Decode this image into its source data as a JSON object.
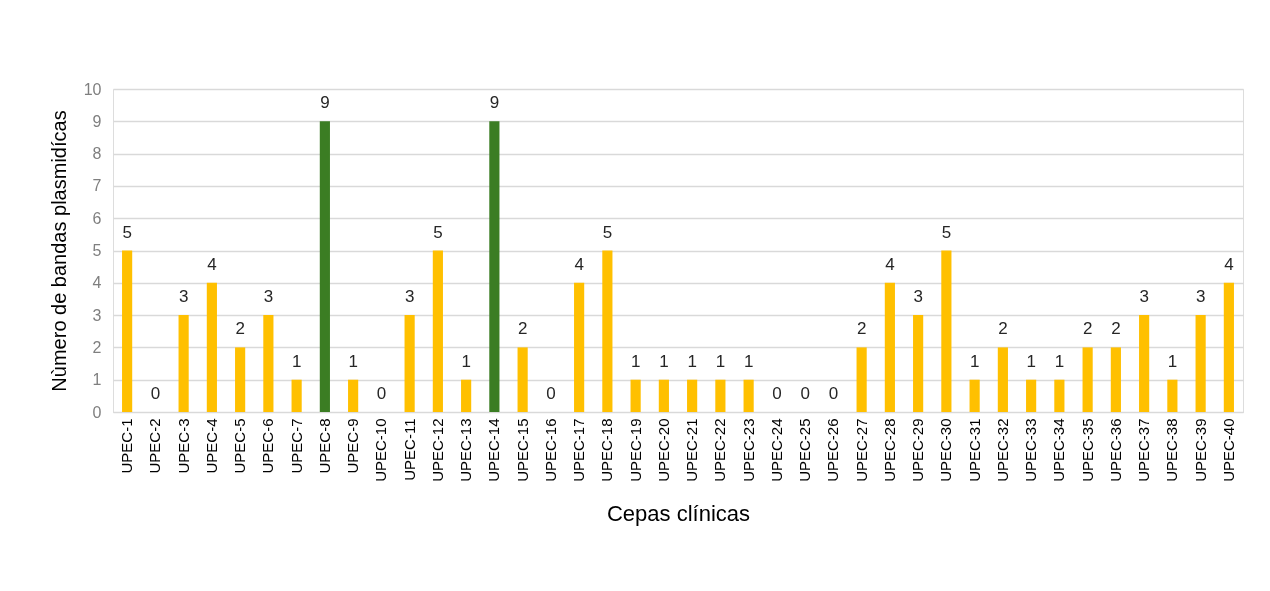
{
  "chart_data": {
    "type": "bar",
    "xlabel": "Cepas clínicas",
    "ylabel": "Nùmero de bandas plasmidícas",
    "categories": [
      "UPEC-1",
      "UPEC-2",
      "UPEC-3",
      "UPEC-4",
      "UPEC-5",
      "UPEC-6",
      "UPEC-7",
      "UPEC-8",
      "UPEC-9",
      "UPEC-10",
      "UPEC-11",
      "UPEC-12",
      "UPEC-13",
      "UPEC-14",
      "UPEC-15",
      "UPEC-16",
      "UPEC-17",
      "UPEC-18",
      "UPEC-19",
      "UPEC-20",
      "UPEC-21",
      "UPEC-22",
      "UPEC-23",
      "UPEC-24",
      "UPEC-25",
      "UPEC-26",
      "UPEC-27",
      "UPEC-28",
      "UPEC-29",
      "UPEC-30",
      "UPEC-31",
      "UPEC-32",
      "UPEC-33",
      "UPEC-34",
      "UPEC-35",
      "UPEC-36",
      "UPEC-37",
      "UPEC-38",
      "UPEC-39",
      "UPEC-40"
    ],
    "values": [
      5,
      0,
      3,
      4,
      2,
      3,
      1,
      9,
      1,
      0,
      3,
      5,
      1,
      9,
      2,
      0,
      4,
      5,
      1,
      1,
      1,
      1,
      1,
      0,
      0,
      0,
      2,
      4,
      3,
      5,
      1,
      2,
      1,
      1,
      2,
      2,
      3,
      1,
      3,
      4
    ],
    "colors": [
      "#ffc000",
      "#ffc000",
      "#ffc000",
      "#ffc000",
      "#ffc000",
      "#ffc000",
      "#ffc000",
      "#3b7d23",
      "#ffc000",
      "#ffc000",
      "#ffc000",
      "#ffc000",
      "#ffc000",
      "#3b7d23",
      "#ffc000",
      "#ffc000",
      "#ffc000",
      "#ffc000",
      "#ffc000",
      "#ffc000",
      "#ffc000",
      "#ffc000",
      "#ffc000",
      "#ffc000",
      "#ffc000",
      "#ffc000",
      "#ffc000",
      "#ffc000",
      "#ffc000",
      "#ffc000",
      "#ffc000",
      "#ffc000",
      "#ffc000",
      "#ffc000",
      "#ffc000",
      "#ffc000",
      "#ffc000",
      "#ffc000",
      "#ffc000",
      "#ffc000"
    ],
    "ylim": [
      0,
      10
    ],
    "yticks": [
      0,
      1,
      2,
      3,
      4,
      5,
      6,
      7,
      8,
      9,
      10
    ],
    "grid": "y",
    "data_labels": true
  }
}
